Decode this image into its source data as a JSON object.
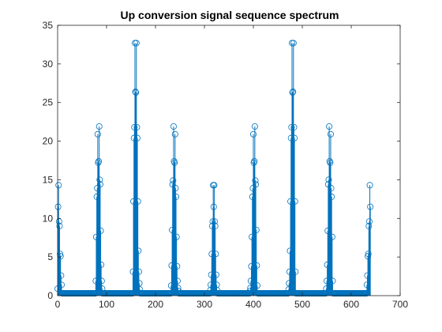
{
  "chart_data": {
    "type": "stem",
    "title": "Up conversion signal sequence spectrum",
    "xlabel": "",
    "ylabel": "",
    "xlim": [
      0,
      700
    ],
    "ylim": [
      0,
      35
    ],
    "xticks": [
      0,
      100,
      200,
      300,
      400,
      500,
      600,
      700
    ],
    "yticks": [
      0,
      5,
      10,
      15,
      20,
      25,
      30,
      35
    ],
    "grid": false,
    "box": true,
    "series_color": "#0072BD",
    "n_points": 640,
    "peaks": [
      {
        "x": [
          0,
          1,
          2,
          3,
          4,
          5,
          6,
          7,
          8
        ],
        "y": [
          0.9,
          11.5,
          14.3,
          9.6,
          9.0,
          5.4,
          5.1,
          2.6,
          1.4
        ]
      },
      {
        "x": [
          78,
          79,
          80,
          81,
          82,
          83,
          84,
          85,
          86,
          87,
          88,
          89,
          90,
          91
        ],
        "y": [
          1.9,
          7.6,
          12.8,
          13.9,
          20.9,
          17.2,
          17.4,
          21.9,
          15.0,
          14.4,
          8.4,
          4.0,
          1.9,
          0.9
        ]
      },
      {
        "x": [
          154,
          155,
          156,
          157,
          158,
          159,
          160,
          161,
          162,
          163,
          164,
          165,
          166,
          167,
          168
        ],
        "y": [
          3.1,
          12.2,
          20.4,
          21.8,
          32.7,
          26.4,
          26.3,
          32.7,
          21.8,
          20.4,
          12.2,
          5.8,
          3.1,
          1.6,
          0.8
        ]
      },
      {
        "x": [
          232,
          233,
          234,
          235,
          236,
          237,
          238,
          239,
          240,
          241,
          242,
          243,
          244,
          245,
          246,
          247
        ],
        "y": [
          1.3,
          3.9,
          8.5,
          14.4,
          14.9,
          21.9,
          17.4,
          17.2,
          20.9,
          13.9,
          12.8,
          7.6,
          3.8,
          1.9,
          1.0,
          0.6
        ]
      },
      {
        "x": [
          312,
          313,
          314,
          315,
          316,
          317,
          318,
          319,
          320,
          321,
          322,
          323,
          324,
          325,
          326
        ],
        "y": [
          0.7,
          1.4,
          2.7,
          5.4,
          9.0,
          9.6,
          14.3,
          11.5,
          14.3,
          9.6,
          9.0,
          5.4,
          2.7,
          1.4,
          0.7
        ]
      },
      {
        "x": [
          393,
          394,
          395,
          396,
          397,
          398,
          399,
          400,
          401,
          402,
          403,
          404,
          405,
          406,
          407,
          408
        ],
        "y": [
          0.6,
          1.0,
          1.9,
          3.8,
          7.6,
          12.8,
          13.9,
          20.9,
          17.2,
          17.4,
          21.9,
          14.9,
          14.4,
          8.5,
          3.9,
          1.3
        ]
      },
      {
        "x": [
          472,
          473,
          474,
          475,
          476,
          477,
          478,
          479,
          480,
          481,
          482,
          483,
          484,
          485,
          486
        ],
        "y": [
          0.8,
          1.6,
          3.1,
          5.8,
          12.2,
          20.4,
          21.8,
          32.7,
          26.3,
          26.4,
          32.7,
          21.8,
          20.4,
          12.2,
          3.1
        ]
      },
      {
        "x": [
          549,
          550,
          551,
          552,
          553,
          554,
          555,
          556,
          557,
          558,
          559,
          560,
          561,
          562
        ],
        "y": [
          0.9,
          1.9,
          4.0,
          8.4,
          14.4,
          15.0,
          21.9,
          17.4,
          17.2,
          20.9,
          13.9,
          12.8,
          7.6,
          1.9
        ]
      },
      {
        "x": [
          632,
          633,
          634,
          635,
          636,
          637,
          638,
          639
        ],
        "y": [
          1.4,
          2.6,
          5.1,
          5.4,
          9.0,
          9.6,
          14.3,
          11.5
        ]
      }
    ],
    "baseline_value": 0.3
  }
}
